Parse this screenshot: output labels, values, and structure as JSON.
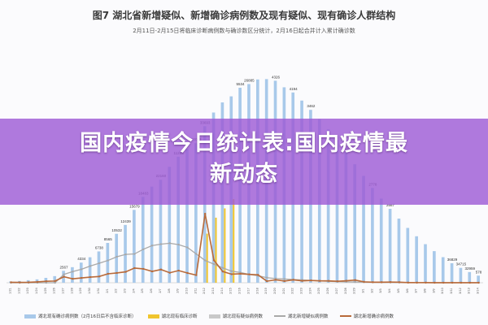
{
  "chart_data": {
    "type": "bar",
    "title": "图7 湖北省新增疑似、新增确诊病例数及现有疑似、现有确诊人群结构",
    "subtitle": "2月11日-2月15日将临床诊断病例数与确诊数区分统计，2月16日起合并计入累计确诊数",
    "categories": [
      "1/21",
      "1/22",
      "1/23",
      "1/24",
      "1/25",
      "1/26",
      "1/27",
      "1/28",
      "1/29",
      "1/30",
      "1/31",
      "2/1",
      "2/2",
      "2/3",
      "2/4",
      "2/5",
      "2/6",
      "2/7",
      "2/8",
      "2/9",
      "2/10",
      "2/11",
      "2/12",
      "2/13",
      "2/14",
      "2/15",
      "2/16",
      "2/17",
      "2/18",
      "2/19",
      "2/20",
      "2/21",
      "2/22",
      "2/23",
      "2/24",
      "2/25",
      "2/26",
      "2/27",
      "2/28",
      "2/29",
      "3/1",
      "3/2",
      "3/3",
      "3/4",
      "3/5",
      "3/6",
      "3/7",
      "3/8",
      "3/9",
      "3/10",
      "3/11",
      "3/12",
      "3/13",
      "3/14"
    ],
    "ylim": [
      0,
      50000
    ],
    "series": [
      {
        "name": "湖北现有确诊病例数（2月16日后不含临床诊断）",
        "kind": "bar",
        "color": "#a8c9ea",
        "values": [
          270,
          375,
          549,
          729,
          1052,
          1423,
          2567,
          3349,
          4334,
          5486,
          6738,
          8565,
          10532,
          12439,
          15679,
          18483,
          20677,
          22160,
          24953,
          27100,
          28800,
          30043,
          33693,
          36627,
          38800,
          40107,
          41957,
          42752,
          43745,
          43822,
          43469,
          42056,
          40940,
          39200,
          37200,
          35200,
          33000,
          30700,
          28100,
          25500,
          23000,
          20400,
          18100,
          15900,
          13800,
          11800,
          10000,
          8300,
          6800,
          5500,
          4200,
          3200,
          2300,
          1530
        ]
      },
      {
        "name": "湖北现有临床诊断",
        "kind": "bar",
        "color": "#f0c52e",
        "values": [
          0,
          0,
          0,
          0,
          0,
          0,
          0,
          0,
          0,
          0,
          0,
          0,
          0,
          0,
          0,
          0,
          0,
          0,
          0,
          0,
          0,
          0,
          10567,
          14000,
          16000,
          18000,
          0,
          0,
          0,
          0,
          0,
          0,
          0,
          0,
          0,
          0,
          0,
          0,
          0,
          0,
          0,
          0,
          0,
          0,
          0,
          0,
          0,
          0,
          0,
          0,
          0,
          0,
          0,
          0
        ]
      },
      {
        "name": "湖北现有疑似病例数",
        "kind": "bar",
        "color": "#c9c9c9",
        "values": [
          0,
          0,
          0,
          0,
          0,
          0,
          0,
          0,
          0,
          0,
          0,
          0,
          0,
          0,
          0,
          0,
          0,
          0,
          0,
          0,
          0,
          0,
          0,
          0,
          0,
          0,
          0,
          0,
          0,
          0,
          0,
          0,
          0,
          0,
          0,
          0,
          0,
          0,
          0,
          0,
          0,
          0,
          0,
          0,
          0,
          0,
          0,
          0,
          0,
          0,
          0,
          0,
          0,
          0
        ]
      },
      {
        "name": "湖北新增疑似病例数",
        "kind": "line",
        "color": "#a9a9a9",
        "values": [
          0,
          0,
          0,
          0,
          0,
          0,
          1800,
          2400,
          2900,
          3600,
          4200,
          4800,
          5600,
          6100,
          6200,
          7200,
          8000,
          8300,
          8500,
          8200,
          7600,
          6200,
          4800,
          4000,
          3200,
          2500,
          2200,
          1800,
          1500,
          1100,
          900,
          800,
          700,
          600,
          500,
          400,
          300,
          250,
          200,
          150,
          120,
          100,
          80,
          60,
          50,
          40,
          30,
          20,
          10,
          10,
          5,
          5,
          5,
          5
        ]
      },
      {
        "name": "湖北新增确诊病例数",
        "kind": "line",
        "color": "#b86a3a",
        "values": [
          100,
          72,
          105,
          180,
          323,
          371,
          1291,
          840,
          1032,
          1220,
          1347,
          1921,
          2103,
          2345,
          3156,
          2987,
          2447,
          2841,
          2147,
          2618,
          2097,
          1638,
          14840,
          4823,
          2420,
          1843,
          1933,
          1807,
          1693,
          349,
          631,
          366,
          630,
          409,
          499,
          401,
          409,
          318,
          423,
          570,
          196,
          114,
          115,
          134,
          126,
          41,
          21,
          36,
          17,
          13,
          8,
          5,
          4,
          4
        ]
      }
    ],
    "data_labels": [
      {
        "text": "11295",
        "x": "2/9"
      },
      {
        "text": "5534",
        "x": "2/16"
      },
      {
        "text": "4326",
        "x": "2/20"
      },
      {
        "text": "4194",
        "x": "2/22"
      },
      {
        "text": "3462",
        "x": "2/24"
      },
      {
        "text": "4498",
        "x": "2/28"
      },
      {
        "text": "2778",
        "x": "3/2"
      },
      {
        "text": "2667",
        "x": "3/4"
      },
      {
        "text": "36829",
        "x": "3/11"
      },
      {
        "text": "34715",
        "x": "3/12"
      },
      {
        "text": "32959",
        "x": "3/13"
      },
      {
        "text": "578",
        "x": "3/14"
      },
      {
        "text": "26885",
        "x": "2/17"
      },
      {
        "text": "33693",
        "x": "2/12"
      },
      {
        "text": "30043",
        "x": "2/11"
      },
      {
        "text": "22160",
        "x": "2/7"
      },
      {
        "text": "18483",
        "x": "2/5"
      },
      {
        "text": "15679",
        "x": "2/4"
      },
      {
        "text": "12439",
        "x": "2/3"
      },
      {
        "text": "10532",
        "x": "2/2"
      },
      {
        "text": "8565",
        "x": "2/1"
      },
      {
        "text": "6738",
        "x": "1/31"
      },
      {
        "text": "4334",
        "x": "1/29"
      },
      {
        "text": "2567",
        "x": "1/27"
      }
    ],
    "legend_position": "bottom",
    "grid": false
  },
  "banner": {
    "line1": "国内疫情今日统计表:国内疫情最",
    "line2": "新动态"
  }
}
